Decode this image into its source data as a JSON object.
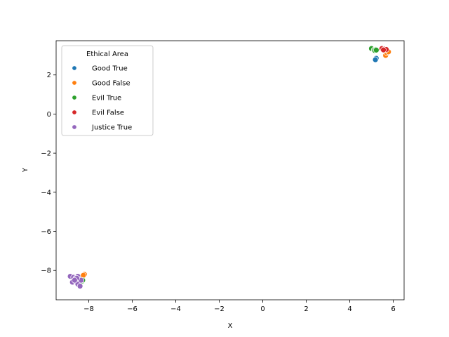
{
  "chart_data": {
    "type": "scatter",
    "title": "",
    "xlabel": "X",
    "ylabel": "Y",
    "xlim": [
      -9.5,
      6.5
    ],
    "ylim": [
      -9.5,
      3.75
    ],
    "xticks": [
      -8,
      -6,
      -4,
      -2,
      0,
      2,
      4,
      6
    ],
    "yticks": [
      -8,
      -6,
      -4,
      -2,
      0,
      2
    ],
    "grid": false,
    "legend": {
      "title": "Ethical Area",
      "placement": "top-left"
    },
    "series": [
      {
        "name": "Good True",
        "color": "#1f77b4",
        "points": [
          [
            5.2,
            2.8
          ],
          [
            5.22,
            2.85
          ],
          [
            5.18,
            2.78
          ]
        ]
      },
      {
        "name": "Good False",
        "color": "#ff7f0e",
        "points": [
          [
            5.65,
            3.0
          ],
          [
            5.72,
            3.12
          ],
          [
            5.78,
            3.18
          ],
          [
            -8.2,
            -8.2
          ],
          [
            -8.3,
            -8.35
          ],
          [
            -8.25,
            -8.25
          ]
        ]
      },
      {
        "name": "Evil True",
        "color": "#2ca02c",
        "points": [
          [
            5.0,
            3.35
          ],
          [
            5.12,
            3.28
          ],
          [
            5.2,
            3.3
          ],
          [
            5.15,
            3.25
          ],
          [
            5.22,
            3.27
          ],
          [
            -8.3,
            -8.55
          ],
          [
            -8.28,
            -8.5
          ]
        ]
      },
      {
        "name": "Evil False",
        "color": "#d62728",
        "points": [
          [
            5.48,
            3.35
          ],
          [
            5.6,
            3.32
          ],
          [
            5.68,
            3.3
          ],
          [
            5.55,
            3.28
          ]
        ]
      },
      {
        "name": "Justice True",
        "color": "#9467bd",
        "points": [
          [
            -8.85,
            -8.3
          ],
          [
            -8.7,
            -8.35
          ],
          [
            -8.6,
            -8.4
          ],
          [
            -8.5,
            -8.3
          ],
          [
            -8.45,
            -8.45
          ],
          [
            -8.75,
            -8.6
          ],
          [
            -8.6,
            -8.55
          ],
          [
            -8.5,
            -8.7
          ],
          [
            -8.4,
            -8.8
          ],
          [
            -8.35,
            -8.5
          ],
          [
            -8.55,
            -8.4
          ],
          [
            -8.65,
            -8.5
          ]
        ]
      }
    ]
  }
}
